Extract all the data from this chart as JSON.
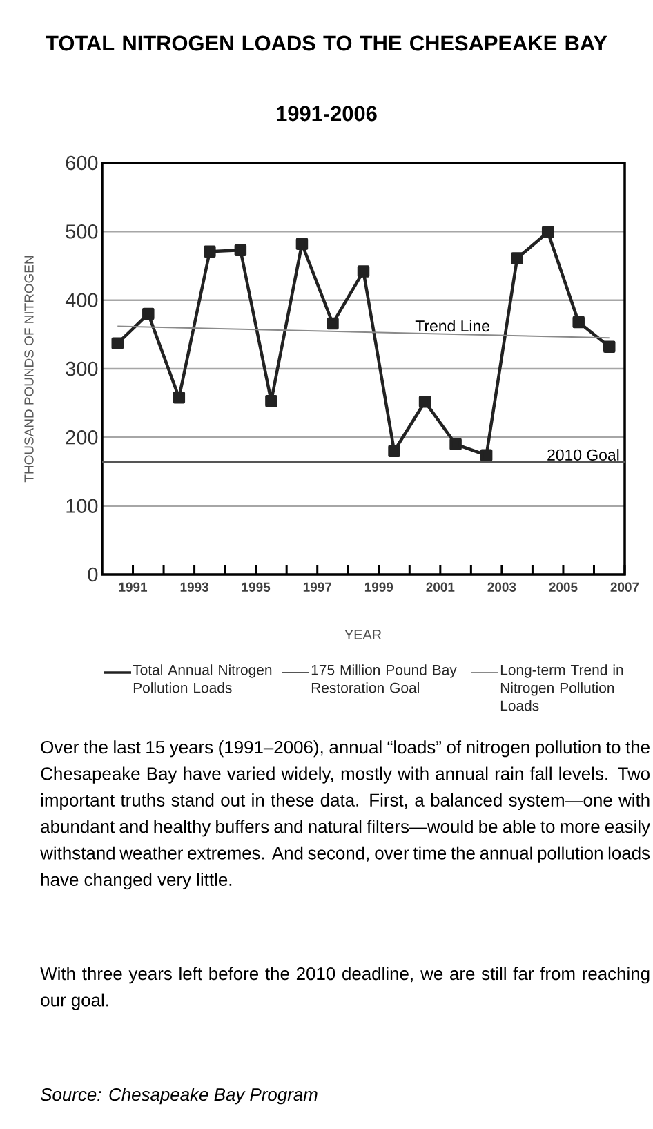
{
  "chart_data": {
    "type": "line",
    "title": "TOTAL NITROGEN LOADS TO THE CHESAPEAKE BAY",
    "subtitle": "1991-2006",
    "xlabel": "YEAR",
    "ylabel": "THOUSAND POUNDS OF NITROGEN",
    "x": [
      1990.5,
      1991.5,
      1992.5,
      1993.5,
      1994.5,
      1995.5,
      1996.5,
      1997.5,
      1998.5,
      1999.5,
      2000.5,
      2001.5,
      2002.5,
      2003.5,
      2004.5,
      2005.5,
      2006.5
    ],
    "series": [
      {
        "name": "Total Annual Nitrogen Pollution Loads",
        "color": "#222222",
        "marker": "square",
        "values": [
          337,
          380,
          258,
          471,
          473,
          253,
          482,
          366,
          442,
          180,
          252,
          190,
          174,
          461,
          499,
          368,
          332
        ]
      },
      {
        "name": "175 Million Pound Bay Restoration Goal",
        "type": "line",
        "color": "#555555",
        "marker": "none",
        "x": [
          1990,
          2007
        ],
        "values": [
          164,
          164
        ]
      },
      {
        "name": "Long-term Trend in Nitrogen Pollution Loads",
        "type": "line",
        "color": "#8a8a8a",
        "marker": "none",
        "x": [
          1990.5,
          2006.5
        ],
        "values": [
          362,
          345
        ]
      }
    ],
    "xlim": [
      1990,
      2007
    ],
    "ylim": [
      0,
      600
    ],
    "xticks": [
      1991,
      {
        "value": 1992,
        "label": null
      },
      1993,
      {
        "value": 1994,
        "label": null
      },
      1995,
      {
        "value": 1996,
        "label": null
      },
      1997,
      {
        "value": 1998,
        "label": null
      },
      1999,
      {
        "value": 2000,
        "label": null
      },
      2001,
      {
        "value": 2002,
        "label": null
      },
      2003,
      {
        "value": 2004,
        "label": null
      },
      2005,
      {
        "value": 2006,
        "label": null
      },
      2007
    ],
    "yticks": [
      0,
      100,
      200,
      300,
      400,
      500,
      600
    ],
    "grid": "y",
    "legend": "bottom",
    "annotations": [
      {
        "text": "Trend Line",
        "x": 2001.4,
        "y": 351
      },
      {
        "text": "2010 Goal",
        "x": 2007,
        "y": 164
      },
      "Over the last 15 years (1991–2006), annual “loads” of nitrogen pollution to the Chesapeake Bay have varied widely, mostly with annual rain fall levels. Two important truths stand out in these data. First, a balanced system—one with abundant and healthy buffers and natural filters—would be able to more easily withstand weather extremes. And second, over time the annual pollution loads have changed very little.",
      "With three years left before the 2010 deadline, we are still far from reaching our goal.",
      "Source: Chesapeake Bay Program"
    ]
  }
}
